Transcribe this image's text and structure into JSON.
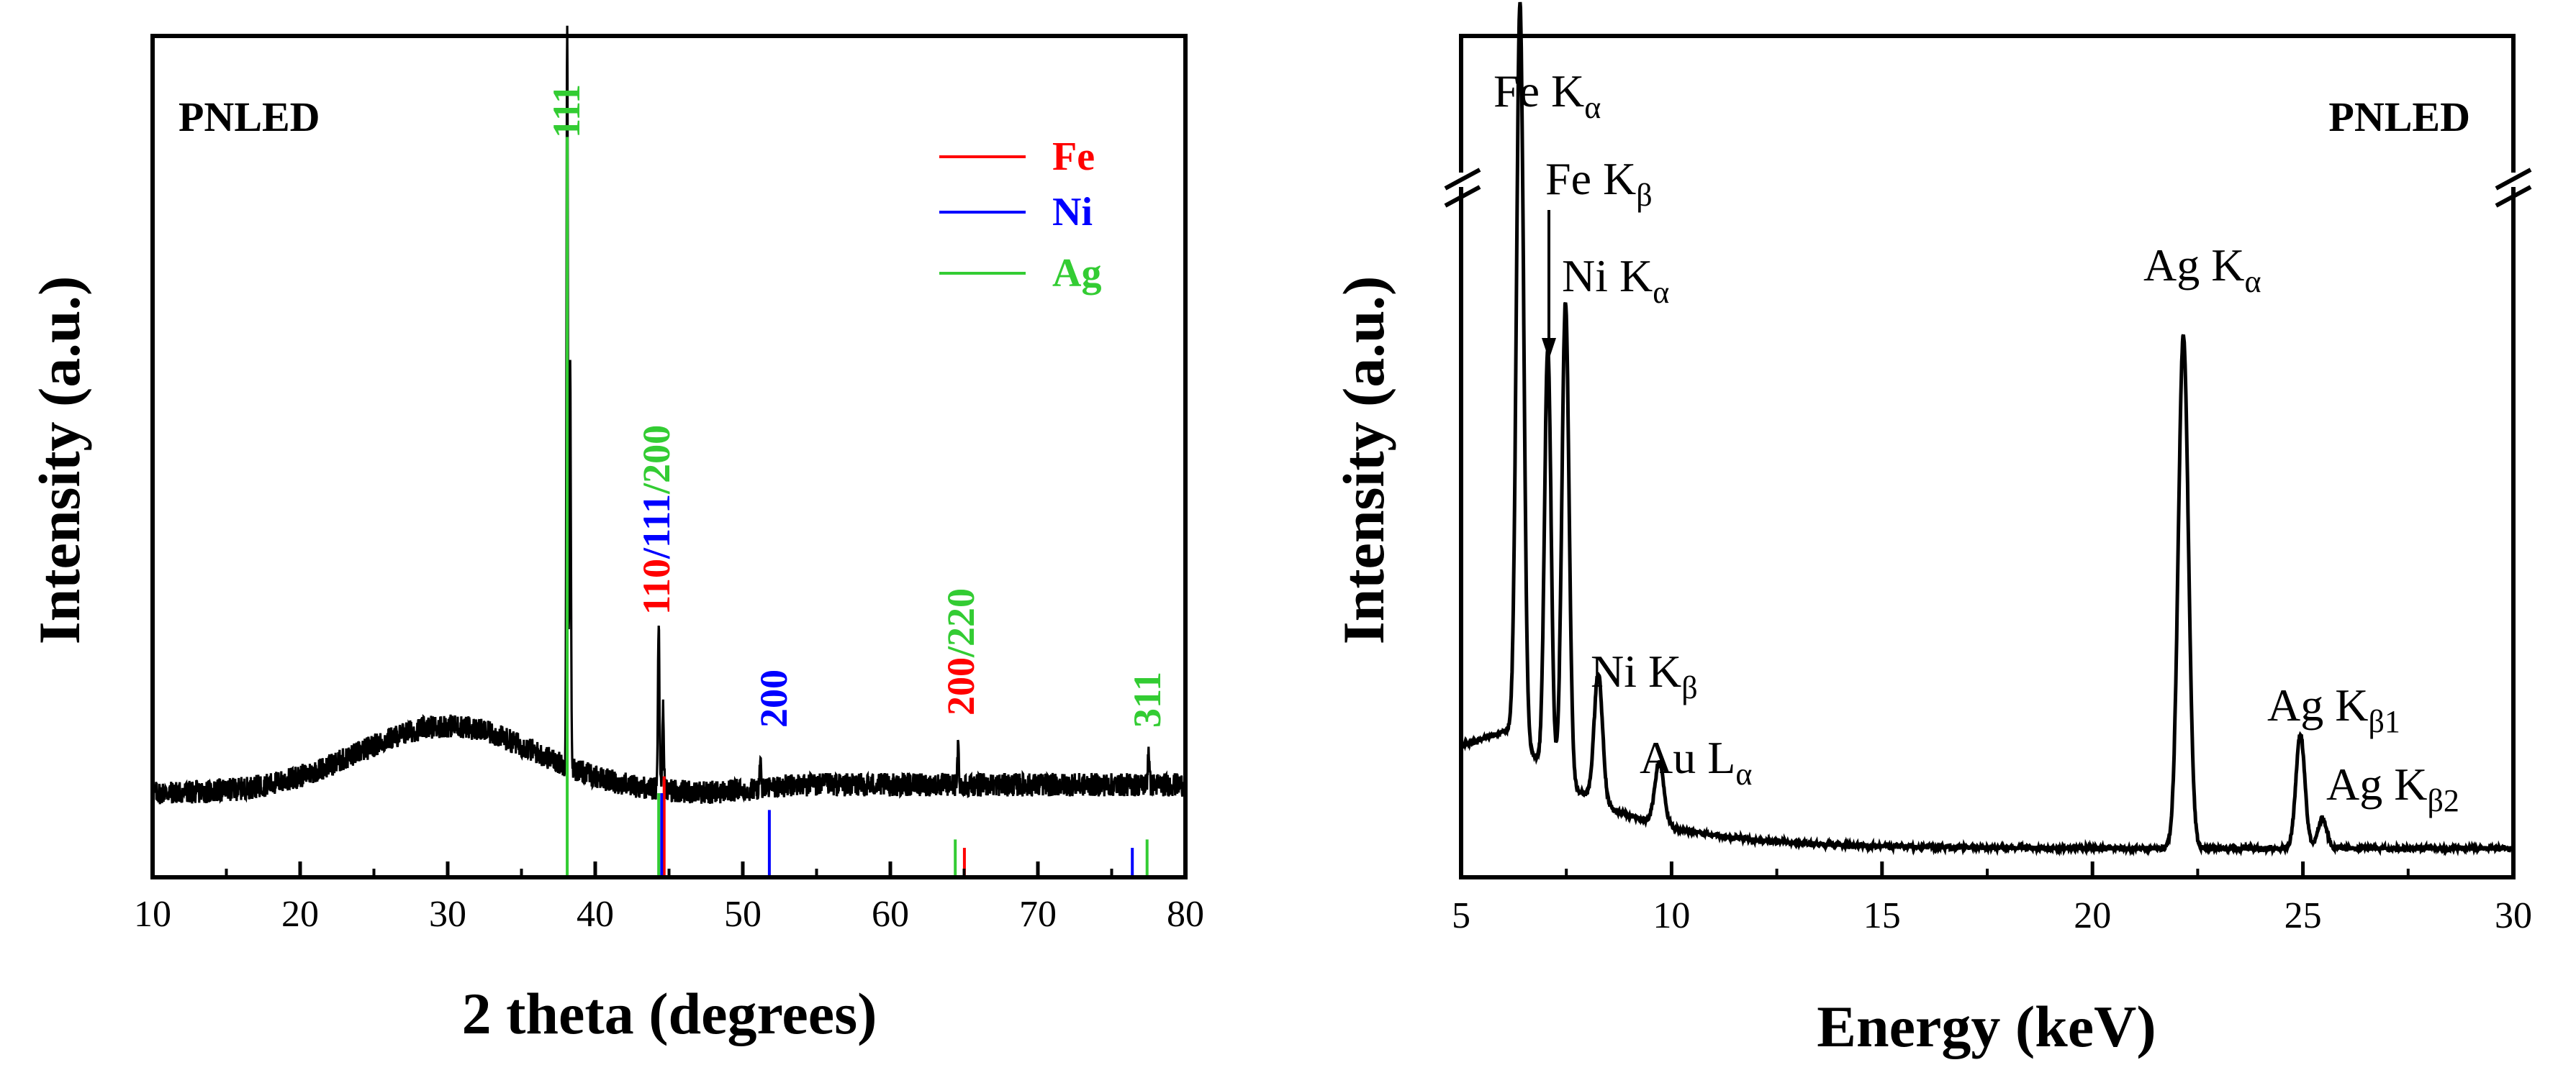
{
  "colors": {
    "fe": "#ff0000",
    "ni": "#0000ff",
    "ag": "#33cc33",
    "ink": "#000000"
  },
  "chart_data": [
    {
      "type": "line",
      "panel_label": "PNLED",
      "xlabel": "2 theta (degrees)",
      "ylabel": "Intensity (a.u.)",
      "xlim": [
        10,
        80
      ],
      "xticks": [
        10,
        20,
        30,
        40,
        50,
        60,
        70,
        80
      ],
      "yticks_shown": false,
      "grid": false,
      "legend_position": "top-right",
      "legend": [
        {
          "label": "Fe",
          "color": "#ff0000"
        },
        {
          "label": "Ni",
          "color": "#0000ff"
        },
        {
          "label": "Ag",
          "color": "#33cc33"
        }
      ],
      "background_hump": {
        "center": 30,
        "width": 8.5,
        "height": 0.08,
        "baseline": 0.1
      },
      "series": [
        {
          "peaks": [
            {
              "x": 38.1,
              "height": 0.88
            },
            {
              "x": 38.3,
              "height": 0.48
            },
            {
              "x": 44.3,
              "height": 0.2
            },
            {
              "x": 44.6,
              "height": 0.1
            },
            {
              "x": 51.2,
              "height": 0.03
            },
            {
              "x": 64.6,
              "height": 0.045
            },
            {
              "x": 77.5,
              "height": 0.045
            }
          ]
        }
      ],
      "reference_lines": [
        {
          "phase": "Ag",
          "x": 38.1,
          "height": 0.88
        },
        {
          "phase": "Fe",
          "x": 44.67,
          "height": 0.12
        },
        {
          "phase": "Ni",
          "x": 44.5,
          "height": 0.1
        },
        {
          "phase": "Ag",
          "x": 44.3,
          "height": 0.1
        },
        {
          "phase": "Ni",
          "x": 51.8,
          "height": 0.08
        },
        {
          "phase": "Ag",
          "x": 64.4,
          "height": 0.045
        },
        {
          "phase": "Fe",
          "x": 65.02,
          "height": 0.035
        },
        {
          "phase": "Ni",
          "x": 76.4,
          "height": 0.035
        },
        {
          "phase": "Ag",
          "x": 77.4,
          "height": 0.045
        }
      ],
      "annotations": [
        {
          "parts": [
            {
              "text": "111",
              "phase": "Ag"
            }
          ]
        },
        {
          "parts": [
            {
              "text": "110",
              "phase": "Fe"
            },
            {
              "text": "/",
              "phase": "Ni"
            },
            {
              "text": "111",
              "phase": "Ni"
            },
            {
              "text": "/",
              "phase": "Ag"
            },
            {
              "text": "200",
              "phase": "Ag"
            }
          ]
        },
        {
          "parts": [
            {
              "text": "200",
              "phase": "Ni"
            }
          ]
        },
        {
          "parts": [
            {
              "text": "200",
              "phase": "Fe"
            },
            {
              "text": "/",
              "phase": "Ag"
            },
            {
              "text": "220",
              "phase": "Ag"
            }
          ]
        },
        {
          "parts": [
            {
              "text": "311",
              "phase": "Ag"
            }
          ]
        }
      ]
    },
    {
      "type": "line",
      "panel_label": "PNLED",
      "xlabel": "Energy (keV)",
      "ylabel": "Intensity (a.u.)",
      "xlim": [
        5,
        30
      ],
      "xticks": [
        5,
        10,
        15,
        20,
        25,
        30
      ],
      "yticks_shown": false,
      "grid": false,
      "axis_break": true,
      "series": [
        {
          "peaks": [
            {
              "x": 6.4,
              "height": 1.0,
              "width": 0.12
            },
            {
              "x": 7.06,
              "height": 0.57,
              "width": 0.11
            },
            {
              "x": 7.48,
              "height": 0.65,
              "width": 0.12
            },
            {
              "x": 8.26,
              "height": 0.175,
              "width": 0.14
            },
            {
              "x": 9.71,
              "height": 0.085,
              "width": 0.15
            },
            {
              "x": 22.16,
              "height": 0.695,
              "width": 0.17
            },
            {
              "x": 24.94,
              "height": 0.155,
              "width": 0.15
            },
            {
              "x": 25.46,
              "height": 0.04,
              "width": 0.15
            }
          ]
        }
      ],
      "annotations": [
        {
          "text": "Fe K",
          "sub": "α"
        },
        {
          "text": "Fe K",
          "sub": "β"
        },
        {
          "text": "Ni K",
          "sub": "α"
        },
        {
          "text": "Ni K",
          "sub": "β"
        },
        {
          "text": "Au L",
          "sub": "α"
        },
        {
          "text": "Ag K",
          "sub": "α"
        },
        {
          "text": "Ag K",
          "sub": "β1"
        },
        {
          "text": "Ag K",
          "sub": "β2"
        }
      ]
    }
  ]
}
